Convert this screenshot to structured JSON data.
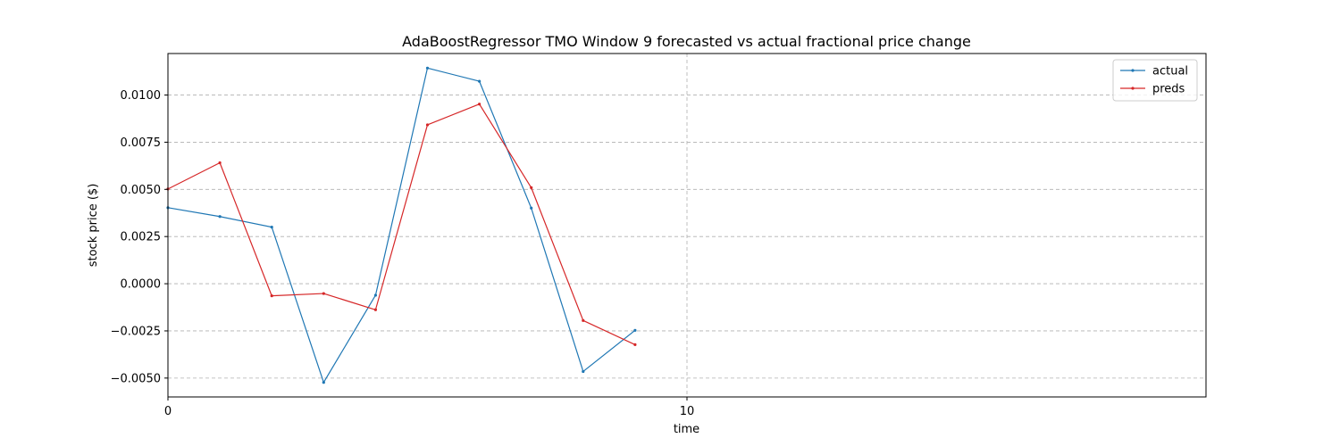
{
  "chart_data": {
    "type": "line",
    "title": "AdaBoostRegressor TMO Window 9 forecasted vs actual fractional price change",
    "xlabel": "time",
    "ylabel": "stock price ($)",
    "xlim": [
      0,
      20
    ],
    "ylim": [
      -0.006,
      0.0122
    ],
    "x_ticks": [
      0,
      10
    ],
    "x_tick_labels": [
      "0",
      "10"
    ],
    "y_ticks": [
      -0.005,
      -0.0025,
      0.0,
      0.0025,
      0.005,
      0.0075,
      0.01
    ],
    "y_tick_labels": [
      "−0.0050",
      "−0.0025",
      "0.0000",
      "0.0025",
      "0.0050",
      "0.0075",
      "0.0100"
    ],
    "grid": true,
    "legend_position": "top-right",
    "x": [
      0,
      1,
      2,
      3,
      4,
      5,
      6,
      7,
      8,
      9
    ],
    "series": [
      {
        "name": "actual",
        "color": "#1f77b4",
        "values": [
          0.00403,
          0.00356,
          0.003,
          -0.00523,
          -0.00061,
          0.01143,
          0.01073,
          0.00401,
          -0.00465,
          -0.00247
        ]
      },
      {
        "name": "preds",
        "color": "#d62728",
        "values": [
          0.00502,
          0.00641,
          -0.00064,
          -0.00052,
          -0.00138,
          0.00842,
          0.00952,
          0.00509,
          -0.00195,
          -0.00323
        ]
      }
    ]
  }
}
